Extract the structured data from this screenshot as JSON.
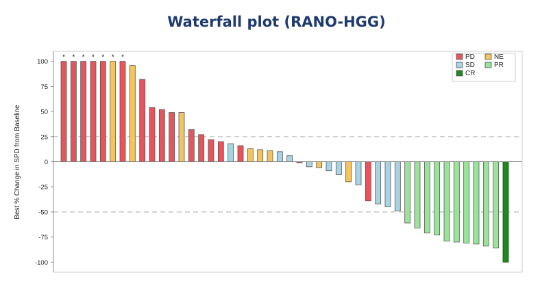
{
  "chart_data": {
    "type": "bar",
    "title": "Waterfall plot (RANO-HGG)",
    "ylabel": "Best % Change in SPD from Baseline",
    "xlabel": "",
    "ylim": [
      -110,
      110
    ],
    "yticks": [
      100,
      75,
      50,
      25,
      0,
      -25,
      -50,
      -75,
      -100
    ],
    "reference_lines": [
      25,
      -50
    ],
    "grid": false,
    "legend_position": "top-right",
    "categories_legend": [
      "PD",
      "NE",
      "SD",
      "PR",
      "CR"
    ],
    "colors": {
      "PD": "#e8545c",
      "NE": "#f4c460",
      "SD": "#a9d3e2",
      "PR": "#9be39b",
      "CR": "#1d8a1d"
    },
    "values": [
      100,
      100,
      100,
      100,
      100,
      100,
      100,
      96,
      82,
      54,
      52,
      49,
      49,
      32,
      27,
      22,
      20,
      18,
      16,
      13,
      12,
      11,
      10,
      6,
      -1,
      -5,
      -6,
      -9,
      -13,
      -20,
      -23,
      -39,
      -42,
      -45,
      -49,
      -61,
      -66,
      -71,
      -73,
      -79,
      -80,
      -81,
      -82,
      -84,
      -86,
      -100
    ],
    "categories": [
      "PD",
      "PD",
      "PD",
      "PD",
      "PD",
      "NE",
      "PD",
      "NE",
      "PD",
      "PD",
      "PD",
      "PD",
      "NE",
      "PD",
      "PD",
      "PD",
      "PD",
      "SD",
      "PD",
      "NE",
      "NE",
      "NE",
      "SD",
      "SD",
      "PD",
      "SD",
      "NE",
      "SD",
      "SD",
      "NE",
      "SD",
      "PD",
      "SD",
      "SD",
      "SD",
      "PR",
      "PR",
      "PR",
      "PR",
      "PR",
      "PR",
      "PR",
      "PR",
      "PR",
      "PR",
      "CR"
    ],
    "marked_bars": [
      0,
      1,
      2,
      3,
      4,
      5,
      6
    ],
    "marker_symbol": "*"
  }
}
